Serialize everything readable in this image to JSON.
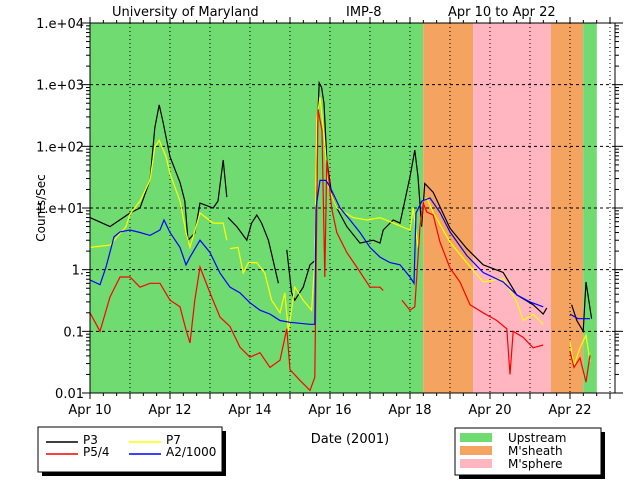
{
  "chart_data": {
    "type": "line",
    "title_parts": [
      "University of Maryland",
      "IMP-8",
      "Apr 10 to Apr 22"
    ],
    "xlabel": "Date (2001)",
    "ylabel": "Counts/Sec",
    "x_units": "days since Apr 10 00:00",
    "xlim": [
      0,
      13.125
    ],
    "yscale": "log",
    "ylim": [
      0.01,
      10000
    ],
    "grid": true,
    "x_ticks": [
      {
        "value": 0,
        "label": "Apr 10"
      },
      {
        "value": 2,
        "label": "Apr 12"
      },
      {
        "value": 4,
        "label": "Apr 14"
      },
      {
        "value": 6,
        "label": "Apr 16"
      },
      {
        "value": 8,
        "label": "Apr 18"
      },
      {
        "value": 10,
        "label": "Apr 20"
      },
      {
        "value": 12,
        "label": "Apr 22"
      }
    ],
    "y_ticks": [
      {
        "value": 10000,
        "label": "1.e+04"
      },
      {
        "value": 1000,
        "label": "1.e+03"
      },
      {
        "value": 100,
        "label": "1.e+02"
      },
      {
        "value": 10,
        "label": "1.e+01"
      },
      {
        "value": 1,
        "label": "1."
      },
      {
        "value": 0.1,
        "label": "0.1"
      },
      {
        "value": 0.01,
        "label": "0.01"
      }
    ],
    "regions": [
      {
        "name": "Upstream",
        "start": 0,
        "end": 8.33,
        "color": "#70DB70"
      },
      {
        "name": "M'sheath",
        "start": 8.33,
        "end": 9.58,
        "color": "#F4A460"
      },
      {
        "name": "M'sphere",
        "start": 9.58,
        "end": 11.52,
        "color": "#FFB6C1"
      },
      {
        "name": "M'sheath",
        "start": 11.52,
        "end": 12.33,
        "color": "#F4A460"
      },
      {
        "name": "Upstream",
        "start": 12.33,
        "end": 12.67,
        "color": "#70DB70"
      }
    ],
    "region_legend": [
      {
        "name": "Upstream",
        "color": "#70DB70"
      },
      {
        "name": "M'sheath",
        "color": "#F4A460"
      },
      {
        "name": "M'sphere",
        "color": "#FFB6C1"
      }
    ],
    "series": [
      {
        "name": "P3",
        "color": "#000000",
        "points": [
          [
            0,
            7
          ],
          [
            0.5,
            5
          ],
          [
            1,
            8.3
          ],
          [
            1.25,
            10
          ],
          [
            1.5,
            28
          ],
          [
            1.62,
            200
          ],
          [
            1.73,
            470
          ],
          [
            1.83,
            240
          ],
          [
            2,
            68
          ],
          [
            2.25,
            26
          ],
          [
            2.37,
            13
          ],
          [
            2.45,
            3
          ],
          [
            2.62,
            3.9
          ],
          [
            2.75,
            12
          ],
          [
            3.08,
            10
          ],
          [
            3.2,
            13
          ],
          [
            3.33,
            60
          ],
          [
            3.42,
            15
          ],
          null,
          [
            3.45,
            7
          ],
          [
            3.67,
            5
          ],
          [
            3.92,
            3
          ],
          [
            4.04,
            5.7
          ],
          [
            4.17,
            7.7
          ],
          [
            4.29,
            5.7
          ],
          [
            4.46,
            3
          ],
          [
            4.58,
            1.4
          ],
          [
            4.71,
            0.6
          ],
          null,
          [
            4.92,
            2.1
          ],
          [
            5.04,
            0.42
          ],
          [
            5.12,
            0.32
          ],
          [
            5.33,
            0.52
          ],
          [
            5.5,
            1.2
          ],
          [
            5.62,
            1.4
          ],
          [
            5.67,
            110
          ],
          [
            5.73,
            1070
          ],
          [
            5.79,
            900
          ],
          [
            5.85,
            500
          ],
          [
            5.92,
            60
          ],
          [
            6.04,
            17
          ],
          [
            6.17,
            10
          ],
          [
            6.42,
            5
          ],
          [
            6.75,
            2.7
          ],
          [
            7.08,
            3
          ],
          [
            7.25,
            2.7
          ],
          [
            7.33,
            4.4
          ],
          [
            7.58,
            6.4
          ],
          [
            7.75,
            5.7
          ],
          [
            8,
            32
          ],
          [
            8.12,
            87
          ],
          [
            8.2,
            32
          ],
          [
            8.29,
            5
          ],
          [
            8.37,
            25
          ],
          [
            8.58,
            18
          ],
          [
            9,
            4.7
          ],
          [
            9.42,
            2.2
          ],
          [
            9.83,
            1.2
          ],
          [
            10.33,
            0.9
          ],
          [
            10.67,
            0.39
          ],
          [
            11.08,
            0.27
          ],
          [
            11.33,
            0.19
          ],
          [
            11.42,
            0.24
          ],
          null,
          [
            12.04,
            0.27
          ],
          [
            12.17,
            0.15
          ],
          [
            12.33,
            0.1
          ],
          [
            12.4,
            0.63
          ],
          [
            12.46,
            0.35
          ],
          [
            12.54,
            0.16
          ]
        ]
      },
      {
        "name": "P7",
        "color": "#FFFF00",
        "points": [
          [
            0,
            2.3
          ],
          [
            0.5,
            2.5
          ],
          [
            0.9,
            5
          ],
          [
            1,
            8
          ],
          [
            1.25,
            13
          ],
          [
            1.5,
            28
          ],
          [
            1.62,
            98
          ],
          [
            1.73,
            125
          ],
          [
            1.9,
            68
          ],
          [
            2,
            36
          ],
          [
            2.25,
            13
          ],
          [
            2.4,
            4
          ],
          [
            2.5,
            2.3
          ],
          [
            2.75,
            8.3
          ],
          [
            3.08,
            5.7
          ],
          [
            3.33,
            5.7
          ],
          [
            3.42,
            3
          ],
          null,
          [
            3.5,
            2.2
          ],
          [
            3.7,
            2.3
          ],
          [
            3.83,
            0.88
          ],
          [
            3.96,
            1.3
          ],
          [
            4.17,
            1.3
          ],
          [
            4.37,
            0.88
          ],
          [
            4.54,
            0.32
          ],
          [
            4.75,
            0.2
          ],
          [
            4.87,
            0.42
          ],
          [
            4.96,
            0.1
          ],
          [
            5.12,
            0.52
          ],
          [
            5.33,
            0.32
          ],
          [
            5.54,
            0.22
          ],
          [
            5.62,
            1.4
          ],
          [
            5.67,
            270
          ],
          [
            5.75,
            630
          ],
          [
            5.87,
            110
          ],
          [
            5.96,
            22
          ],
          [
            6.17,
            10
          ],
          [
            6.58,
            7
          ],
          [
            6.92,
            6.4
          ],
          [
            7.25,
            7
          ],
          [
            7.58,
            5.7
          ],
          [
            8,
            4.4
          ],
          [
            8.08,
            10
          ],
          [
            8.2,
            2.3
          ],
          [
            8.33,
            13
          ],
          [
            8.42,
            14.5
          ],
          [
            8.58,
            8.5
          ],
          [
            9,
            2.8
          ],
          [
            9.42,
            1.3
          ],
          [
            9.83,
            0.63
          ],
          [
            10.33,
            0.72
          ],
          [
            10.67,
            0.3
          ],
          [
            10.83,
            0.15
          ],
          [
            11.08,
            0.19
          ],
          [
            11.33,
            0.13
          ],
          null,
          [
            12,
            0.067
          ],
          [
            12.1,
            0.028
          ],
          [
            12.25,
            0.054
          ],
          [
            12.4,
            0.087
          ],
          [
            12.5,
            0.032
          ]
        ]
      },
      {
        "name": "P5/4",
        "color": "#FF0000",
        "points": [
          [
            0,
            0.2
          ],
          [
            0.25,
            0.1
          ],
          [
            0.5,
            0.36
          ],
          [
            0.75,
            0.76
          ],
          [
            1,
            0.76
          ],
          [
            1.25,
            0.52
          ],
          [
            1.5,
            0.6
          ],
          [
            1.75,
            0.6
          ],
          [
            2,
            0.32
          ],
          [
            2.25,
            0.25
          ],
          [
            2.4,
            0.106
          ],
          [
            2.5,
            0.065
          ],
          [
            2.62,
            0.32
          ],
          [
            2.75,
            1.1
          ],
          [
            3,
            0.42
          ],
          [
            3.25,
            0.17
          ],
          [
            3.5,
            0.12
          ],
          [
            3.75,
            0.055
          ],
          [
            4,
            0.038
          ],
          [
            4.25,
            0.045
          ],
          [
            4.5,
            0.026
          ],
          [
            4.75,
            0.034
          ],
          [
            4.92,
            0.11
          ],
          [
            5,
            0.024
          ],
          [
            5.25,
            0.016
          ],
          [
            5.5,
            0.011
          ],
          [
            5.62,
            0.018
          ],
          [
            5.7,
            400
          ],
          [
            5.8,
            180
          ],
          [
            5.87,
            0.76
          ],
          [
            5.92,
            60
          ],
          [
            6.04,
            10
          ],
          [
            6.17,
            4
          ],
          [
            6.42,
            1.9
          ],
          [
            6.67,
            1.1
          ],
          [
            7,
            0.52
          ],
          [
            7.25,
            0.52
          ],
          [
            7.33,
            0.46
          ],
          null,
          [
            7.8,
            0.32
          ],
          [
            8,
            0.22
          ],
          [
            8.12,
            0.25
          ],
          [
            8.25,
            5
          ],
          [
            8.33,
            12
          ],
          [
            8.42,
            8.6
          ],
          [
            8.58,
            7.7
          ],
          [
            8.75,
            2.8
          ],
          [
            9,
            1.06
          ],
          [
            9.25,
            0.63
          ],
          [
            9.5,
            0.27
          ],
          [
            9.83,
            0.2
          ],
          [
            10.17,
            0.15
          ],
          [
            10.42,
            0.11
          ],
          [
            10.5,
            0.02
          ],
          [
            10.58,
            0.1
          ],
          [
            10.83,
            0.08
          ],
          [
            11.08,
            0.054
          ],
          [
            11.33,
            0.06
          ],
          null,
          [
            12,
            0.047
          ],
          [
            12.1,
            0.026
          ],
          [
            12.25,
            0.037
          ],
          [
            12.4,
            0.015
          ],
          [
            12.5,
            0.041
          ]
        ]
      },
      {
        "name": "A2/1000",
        "color": "#0000FF",
        "points": [
          [
            0,
            0.68
          ],
          [
            0.25,
            0.57
          ],
          [
            0.4,
            1.1
          ],
          [
            0.6,
            3.4
          ],
          [
            0.75,
            4.1
          ],
          [
            1,
            4.4
          ],
          [
            1.25,
            4
          ],
          [
            1.5,
            3.6
          ],
          [
            1.75,
            4.4
          ],
          [
            1.85,
            6.4
          ],
          [
            2,
            4
          ],
          [
            2.25,
            2.3
          ],
          [
            2.4,
            1.2
          ],
          [
            2.5,
            1.6
          ],
          [
            2.75,
            3
          ],
          [
            3,
            1.9
          ],
          [
            3.25,
            0.88
          ],
          [
            3.5,
            0.52
          ],
          [
            3.75,
            0.42
          ],
          [
            4,
            0.29
          ],
          [
            4.25,
            0.22
          ],
          [
            4.5,
            0.19
          ],
          [
            4.75,
            0.15
          ],
          [
            5,
            0.14
          ],
          [
            5.5,
            0.13
          ],
          [
            5.62,
            0.13
          ],
          [
            5.65,
            10
          ],
          [
            5.75,
            28
          ],
          [
            5.9,
            28
          ],
          [
            6,
            22
          ],
          [
            6.25,
            10
          ],
          [
            6.5,
            6.4
          ],
          [
            6.75,
            4
          ],
          [
            7,
            2.3
          ],
          [
            7.25,
            1.6
          ],
          [
            7.5,
            1.3
          ],
          [
            7.75,
            1.2
          ],
          [
            8,
            0.76
          ],
          [
            8.1,
            0.6
          ],
          [
            8.15,
            8.3
          ],
          [
            8.3,
            13
          ],
          [
            8.5,
            14.5
          ],
          [
            8.75,
            8.5
          ],
          [
            9,
            4.1
          ],
          [
            9.42,
            1.7
          ],
          [
            9.83,
            0.9
          ],
          [
            10.33,
            0.63
          ],
          [
            10.67,
            0.39
          ],
          [
            11,
            0.3
          ],
          [
            11.33,
            0.25
          ],
          null,
          [
            12,
            0.19
          ],
          [
            12.2,
            0.16
          ],
          [
            12.5,
            0.16
          ]
        ]
      }
    ],
    "series_legend": [
      {
        "name": "P3",
        "color": "#000000"
      },
      {
        "name": "P7",
        "color": "#FFFF00"
      },
      {
        "name": "P5/4",
        "color": "#FF0000"
      },
      {
        "name": "A2/1000",
        "color": "#0000FF"
      }
    ]
  }
}
